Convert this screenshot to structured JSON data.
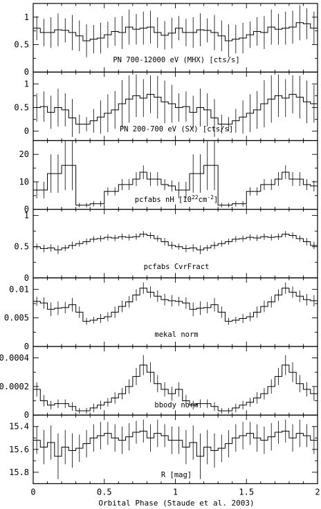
{
  "chart_data": {
    "type": "line",
    "x_axis": {
      "label": "Orbital Phase (Staude et al. 2003)",
      "range": [
        0,
        2
      ],
      "ticks": [
        0,
        0.5,
        1,
        1.5,
        2
      ],
      "tick_labels": [
        "0",
        "0.5",
        "1",
        "1.5",
        "2"
      ]
    },
    "bins": [
      0.0,
      0.05,
      0.1,
      0.15,
      0.2,
      0.25,
      0.3,
      0.35,
      0.4,
      0.45,
      0.5,
      0.55,
      0.6,
      0.65,
      0.7,
      0.75,
      0.8,
      0.85,
      0.9,
      0.95,
      1.0,
      1.05,
      1.1,
      1.15,
      1.2,
      1.25,
      1.3,
      1.35,
      1.4,
      1.45,
      1.5,
      1.55,
      1.6,
      1.65,
      1.7,
      1.75,
      1.8,
      1.85,
      1.9,
      1.95,
      2.0
    ],
    "panels": [
      {
        "label": "PN 700-12000 eV (MHX) [cts/s]",
        "ylim": [
          0,
          1.25
        ],
        "yticks": [
          0,
          0.5,
          1
        ],
        "ytick_labels": [
          "0",
          "0.5",
          "1"
        ],
        "values": [
          0.8,
          0.72,
          0.72,
          0.77,
          0.76,
          0.72,
          0.66,
          0.57,
          0.6,
          0.62,
          0.68,
          0.74,
          0.72,
          0.82,
          0.78,
          0.8,
          0.82,
          0.72,
          0.67,
          0.71,
          0.8,
          0.72,
          0.72,
          0.77,
          0.76,
          0.72,
          0.66,
          0.57,
          0.6,
          0.62,
          0.68,
          0.74,
          0.72,
          0.82,
          0.78,
          0.8,
          0.82,
          0.9,
          0.88,
          0.8
        ],
        "errors": [
          0.22,
          0.25,
          0.28,
          0.3,
          0.22,
          0.32,
          0.28,
          0.3,
          0.26,
          0.28,
          0.24,
          0.26,
          0.3,
          0.32,
          0.28,
          0.3,
          0.3,
          0.28,
          0.26,
          0.28,
          0.22,
          0.25,
          0.28,
          0.3,
          0.22,
          0.32,
          0.28,
          0.3,
          0.26,
          0.28,
          0.24,
          0.26,
          0.3,
          0.32,
          0.28,
          0.3,
          0.3,
          0.32,
          0.28,
          0.3
        ]
      },
      {
        "label": "PN 200-700 eV (SX) [cts/s]",
        "ylim": [
          -0.2,
          1.25
        ],
        "yticks": [
          0,
          0.5,
          1
        ],
        "ytick_labels": [
          "0",
          "0.5",
          "1"
        ],
        "values": [
          0.5,
          0.52,
          0.4,
          0.5,
          0.45,
          0.28,
          0.15,
          0.15,
          0.22,
          0.3,
          0.38,
          0.45,
          0.58,
          0.68,
          0.75,
          0.7,
          0.78,
          0.72,
          0.62,
          0.58,
          0.5,
          0.52,
          0.4,
          0.5,
          0.45,
          0.28,
          0.15,
          0.15,
          0.22,
          0.3,
          0.38,
          0.45,
          0.58,
          0.68,
          0.75,
          0.7,
          0.78,
          0.72,
          0.62,
          0.58
        ],
        "errors": [
          0.3,
          0.32,
          0.35,
          0.4,
          0.35,
          0.4,
          0.2,
          0.15,
          0.25,
          0.35,
          0.4,
          0.4,
          0.5,
          0.5,
          0.45,
          0.4,
          0.4,
          0.45,
          0.45,
          0.4,
          0.3,
          0.32,
          0.35,
          0.4,
          0.35,
          0.4,
          0.2,
          0.15,
          0.25,
          0.35,
          0.4,
          0.4,
          0.5,
          0.5,
          0.45,
          0.4,
          0.4,
          0.45,
          0.45,
          0.4
        ]
      },
      {
        "label": "pcfabs nH [10",
        "label_sup": "22",
        "label_unit": "cm",
        "label_sup2": "-2",
        "label_end": "]",
        "ylim": [
          0,
          25
        ],
        "yticks": [
          0,
          10,
          20
        ],
        "ytick_labels": [
          "0",
          "10",
          "20"
        ],
        "values": [
          7,
          7,
          13,
          13,
          16,
          16,
          1.5,
          1.5,
          2,
          2,
          6.5,
          6.5,
          9,
          9,
          11,
          13.5,
          11,
          11,
          9,
          8.5,
          7,
          7,
          13,
          13,
          16,
          16,
          1.5,
          1.5,
          2,
          2,
          6.5,
          6.5,
          9,
          9,
          11,
          13.5,
          11,
          11,
          9,
          8.5
        ],
        "errors": [
          3,
          3,
          7,
          7,
          9,
          9,
          0.8,
          0.8,
          1,
          1,
          1.5,
          1.5,
          2,
          2,
          2.5,
          2.5,
          2.5,
          2.5,
          2,
          2,
          3,
          3,
          7,
          7,
          9,
          9,
          0.8,
          0.8,
          1,
          1,
          1.5,
          1.5,
          2,
          2,
          2.5,
          2.5,
          2.5,
          2.5,
          2,
          2
        ]
      },
      {
        "label": "pcfabs CvrFract",
        "ylim": [
          0,
          1.1
        ],
        "yticks": [
          0,
          0.5,
          1
        ],
        "ytick_labels": [
          "0",
          "0.5",
          "1"
        ],
        "values": [
          0.5,
          0.47,
          0.48,
          0.45,
          0.48,
          0.52,
          0.55,
          0.58,
          0.62,
          0.63,
          0.65,
          0.64,
          0.66,
          0.65,
          0.66,
          0.7,
          0.68,
          0.63,
          0.58,
          0.52,
          0.5,
          0.47,
          0.48,
          0.45,
          0.48,
          0.52,
          0.55,
          0.58,
          0.62,
          0.63,
          0.65,
          0.64,
          0.66,
          0.65,
          0.66,
          0.7,
          0.68,
          0.63,
          0.58,
          0.52
        ],
        "errors": [
          0.05,
          0.06,
          0.06,
          0.07,
          0.05,
          0.06,
          0.05,
          0.05,
          0.05,
          0.05,
          0.05,
          0.05,
          0.05,
          0.05,
          0.05,
          0.05,
          0.05,
          0.05,
          0.06,
          0.06,
          0.05,
          0.06,
          0.06,
          0.07,
          0.05,
          0.06,
          0.05,
          0.05,
          0.05,
          0.05,
          0.05,
          0.05,
          0.05,
          0.05,
          0.05,
          0.05,
          0.05,
          0.05,
          0.06,
          0.06
        ]
      },
      {
        "label": "mekal norm",
        "ylim": [
          0,
          0.012
        ],
        "yticks": [
          0,
          0.005,
          0.01
        ],
        "ytick_labels": [
          "0",
          "0.005",
          "0.01"
        ],
        "values": [
          0.0079,
          0.0076,
          0.0065,
          0.0067,
          0.0068,
          0.0073,
          0.006,
          0.0044,
          0.0046,
          0.0049,
          0.0052,
          0.006,
          0.007,
          0.0078,
          0.009,
          0.0102,
          0.0095,
          0.0088,
          0.0082,
          0.008,
          0.0079,
          0.0076,
          0.0065,
          0.0067,
          0.0068,
          0.0073,
          0.006,
          0.0044,
          0.0046,
          0.0049,
          0.0052,
          0.006,
          0.007,
          0.0078,
          0.009,
          0.0102,
          0.0095,
          0.0088,
          0.0082,
          0.008
        ],
        "errors": [
          0.0008,
          0.001,
          0.0012,
          0.0012,
          0.001,
          0.0012,
          0.001,
          0.0006,
          0.0006,
          0.0008,
          0.0008,
          0.001,
          0.001,
          0.001,
          0.001,
          0.001,
          0.001,
          0.001,
          0.001,
          0.001,
          0.0008,
          0.001,
          0.0012,
          0.0012,
          0.001,
          0.0012,
          0.001,
          0.0006,
          0.0006,
          0.0008,
          0.0008,
          0.001,
          0.001,
          0.001,
          0.001,
          0.001,
          0.001,
          0.001,
          0.001,
          0.001
        ]
      },
      {
        "label": "bbody norm",
        "ylim": [
          0,
          0.00048
        ],
        "yticks": [
          0,
          0.0002,
          0.0004
        ],
        "ytick_labels": [
          "0",
          "0.0002",
          "0.0004"
        ],
        "values": [
          0.00018,
          0.0001,
          7e-05,
          8e-05,
          8e-05,
          6e-05,
          3e-05,
          3e-05,
          5e-05,
          7e-05,
          9e-05,
          0.00012,
          0.00015,
          0.0002,
          0.00027,
          0.00035,
          0.0003,
          0.00022,
          0.00018,
          0.00015,
          0.00018,
          0.0001,
          7e-05,
          8e-05,
          8e-05,
          6e-05,
          3e-05,
          3e-05,
          5e-05,
          7e-05,
          9e-05,
          0.00012,
          0.00015,
          0.0002,
          0.00027,
          0.00035,
          0.0003,
          0.00022,
          0.00018,
          0.00015
        ],
        "errors": [
          5e-05,
          4e-05,
          3e-05,
          3e-05,
          3e-05,
          3e-05,
          2e-05,
          2e-05,
          3e-05,
          3e-05,
          3e-05,
          4e-05,
          4e-05,
          5e-05,
          6e-05,
          7e-05,
          7e-05,
          6e-05,
          5e-05,
          5e-05,
          5e-05,
          4e-05,
          3e-05,
          3e-05,
          3e-05,
          3e-05,
          2e-05,
          2e-05,
          3e-05,
          3e-05,
          3e-05,
          4e-05,
          4e-05,
          5e-05,
          6e-05,
          7e-05,
          7e-05,
          6e-05,
          5e-05,
          5e-05
        ]
      },
      {
        "label": "R [mag]",
        "ylim": [
          15.3,
          15.9
        ],
        "y_inverted": true,
        "yticks": [
          15.4,
          15.6,
          15.8
        ],
        "ytick_labels": [
          "15.4",
          "15.6",
          "15.8"
        ],
        "values": [
          15.52,
          15.58,
          15.54,
          15.66,
          15.58,
          15.61,
          15.59,
          15.55,
          15.5,
          15.48,
          15.46,
          15.5,
          15.52,
          15.49,
          15.45,
          15.44,
          15.5,
          15.46,
          15.48,
          15.52,
          15.52,
          15.58,
          15.54,
          15.66,
          15.58,
          15.61,
          15.59,
          15.55,
          15.5,
          15.48,
          15.46,
          15.5,
          15.52,
          15.49,
          15.45,
          15.44,
          15.5,
          15.46,
          15.48,
          15.52
        ],
        "errors": [
          0.12,
          0.15,
          0.15,
          0.2,
          0.15,
          0.15,
          0.12,
          0.12,
          0.12,
          0.12,
          0.1,
          0.12,
          0.12,
          0.12,
          0.1,
          0.1,
          0.12,
          0.12,
          0.1,
          0.12,
          0.12,
          0.15,
          0.15,
          0.2,
          0.15,
          0.15,
          0.12,
          0.12,
          0.12,
          0.12,
          0.1,
          0.12,
          0.12,
          0.12,
          0.1,
          0.1,
          0.12,
          0.12,
          0.1,
          0.12
        ]
      }
    ]
  }
}
